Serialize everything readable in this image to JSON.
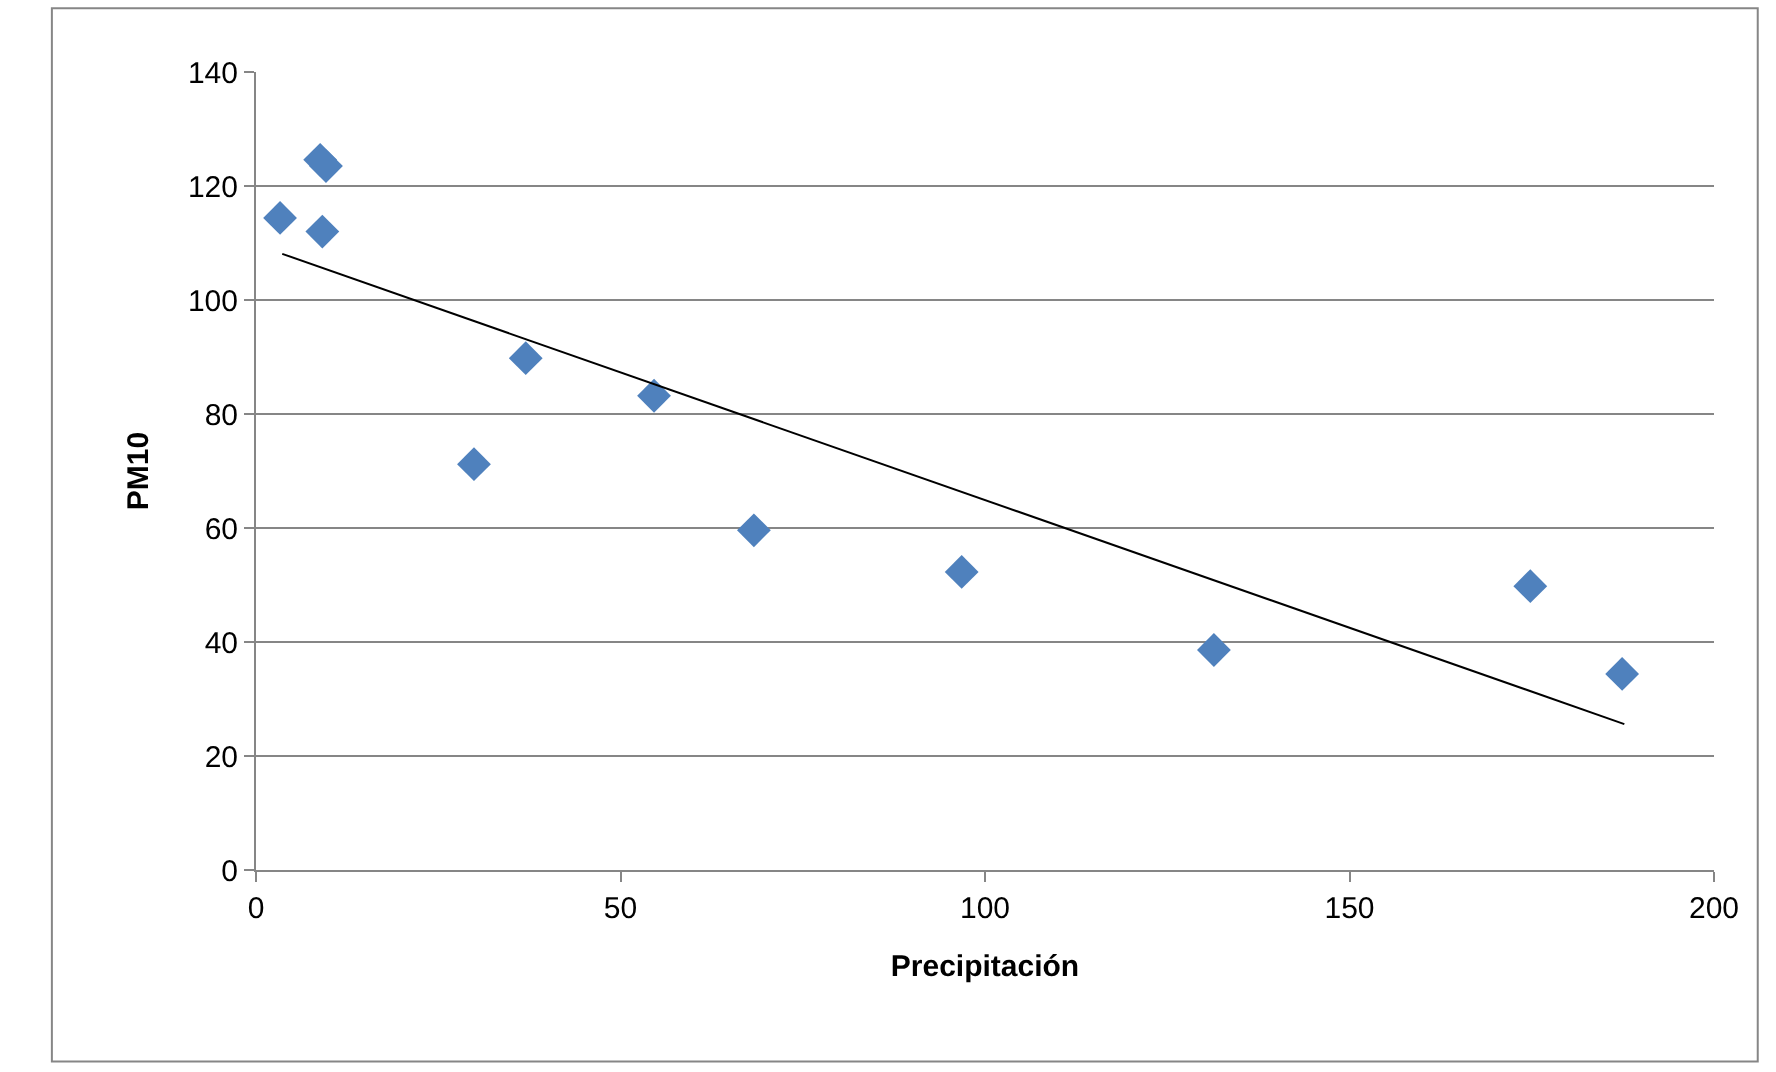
{
  "chart_data": {
    "type": "scatter",
    "xlabel": "Precipitación",
    "ylabel": "PM10",
    "xlim": [
      0,
      200
    ],
    "xticks": [
      0,
      50,
      100,
      150,
      200
    ],
    "ylim": [
      0,
      140
    ],
    "yticks": [
      0,
      20,
      40,
      60,
      80,
      100,
      120,
      140
    ],
    "grid": "y",
    "marker": "diamond",
    "series": [
      {
        "color": "#4f81bd",
        "x": [
          3.3,
          8.8,
          9.6,
          9.1,
          29.9,
          37,
          54.6,
          68.3,
          96.8,
          131.4,
          174.8,
          187.4
        ],
        "values": [
          114.4,
          124.6,
          123.5,
          112,
          71.2,
          89.8,
          83.2,
          59.6,
          52.3,
          38.6,
          49.8,
          34.4
        ]
      },
      {
        "type": "line",
        "color": "#000000",
        "marker": "none",
        "line_style": "solid",
        "x": [
          3.6,
          187.7
        ],
        "values": [
          108.1,
          25.6
        ]
      }
    ]
  }
}
